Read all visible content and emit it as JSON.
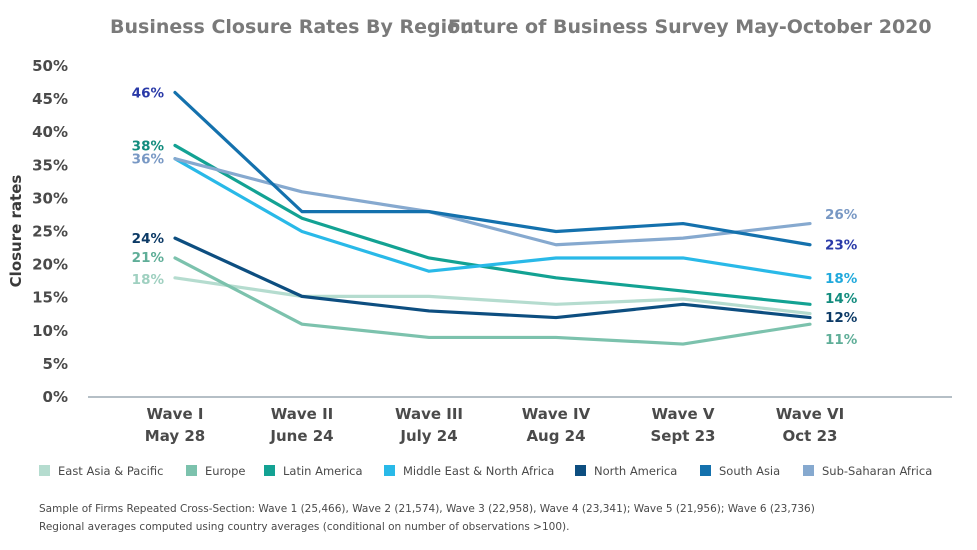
{
  "chart_data": {
    "type": "line",
    "title": "Business Closure Rates By Region",
    "subtitle": "Future of Business Survey May-October 2020",
    "ylabel": "Closure rates",
    "xlabel": "",
    "ylim": [
      0,
      50
    ],
    "yticks": [
      "0%",
      "5%",
      "10%",
      "15%",
      "20%",
      "25%",
      "30%",
      "35%",
      "40%",
      "45%",
      "50%"
    ],
    "categories": [
      {
        "wave": "Wave I",
        "date": "May 28"
      },
      {
        "wave": "Wave II",
        "date": "June 24"
      },
      {
        "wave": "Wave III",
        "date": "July 24"
      },
      {
        "wave": "Wave IV",
        "date": "Aug 24"
      },
      {
        "wave": "Wave V",
        "date": "Sept 23"
      },
      {
        "wave": "Wave VI",
        "date": "Oct 23"
      }
    ],
    "grid": false,
    "legend_position": "bottom",
    "series": [
      {
        "name": "East Asia & Pacific",
        "color": "#b5dccf",
        "label_color": "#9fd0c0",
        "values": [
          18,
          15.2,
          15.2,
          14,
          14.8,
          12.6
        ],
        "start_label": "18%",
        "end_label": ""
      },
      {
        "name": "Europe",
        "color": "#7cc2ad",
        "label_color": "#5fae98",
        "values": [
          21,
          11,
          9,
          9,
          8,
          11
        ],
        "start_label": "21%",
        "end_label": "11%"
      },
      {
        "name": "Latin America",
        "color": "#13a293",
        "label_color": "#138c7e",
        "values": [
          38,
          27,
          21,
          18,
          16,
          14
        ],
        "start_label": "38%",
        "end_label": "14%"
      },
      {
        "name": "Middle East & North Africa",
        "color": "#29b9e8",
        "label_color": "#20a9dc",
        "values": [
          36,
          25,
          19,
          21,
          21,
          18
        ],
        "start_label": "",
        "end_label": "18%"
      },
      {
        "name": "North America",
        "color": "#0d4e80",
        "label_color": "#0c3a66",
        "values": [
          24,
          15.2,
          13,
          12,
          14,
          12
        ],
        "start_label": "24%",
        "end_label": "12%"
      },
      {
        "name": "South Asia",
        "color": "#1471ad",
        "label_color": "#2a3aa8",
        "values": [
          46,
          28,
          28,
          25,
          26.2,
          23
        ],
        "start_label": "46%",
        "end_label": "23%"
      },
      {
        "name": "Sub-Saharan Africa",
        "color": "#86a9cf",
        "label_color": "#7898c4",
        "values": [
          36,
          31,
          28,
          23,
          24,
          26.2
        ],
        "start_label": "36%",
        "end_label": "26%"
      }
    ],
    "notes": [
      "Sample of Firms Repeated Cross-Section: Wave 1 (25,466), Wave 2 (21,574), Wave 3 (22,958), Wave 4 (23,341); Wave 5 (21,956); Wave 6 (23,736)",
      "Regional averages computed using country averages (conditional on number of observations >100)."
    ]
  }
}
